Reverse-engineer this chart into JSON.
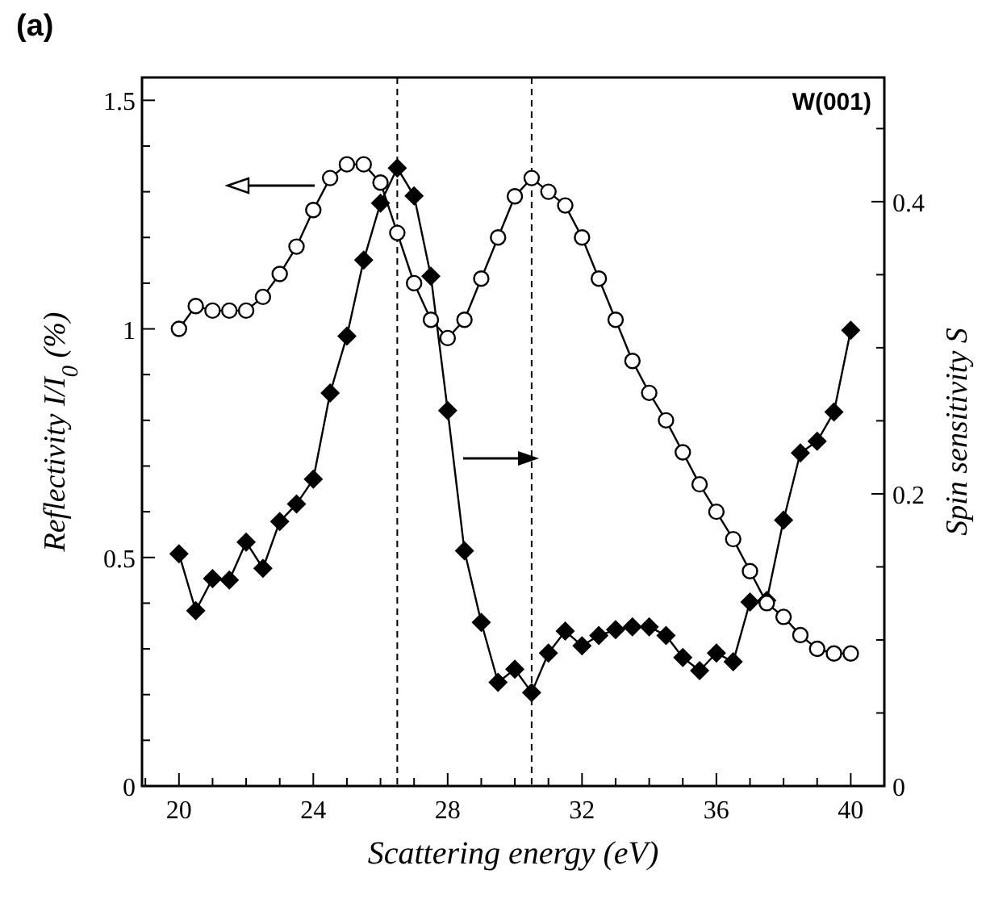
{
  "chart_data": {
    "type": "line",
    "title": "(a)",
    "xlabel": "Scattering energy (eV)",
    "ylabel": "Reflectivity I/I$_{0}$ (%)",
    "y2label": "Spin sensitivity S",
    "annotations": [
      "W(001)"
    ],
    "x": [
      20,
      20.5,
      21,
      21.5,
      22,
      22.5,
      23,
      23.5,
      24,
      24.5,
      25,
      25.5,
      26,
      26.5,
      27,
      27.5,
      28,
      28.5,
      29,
      29.5,
      30,
      30.5,
      31,
      31.5,
      32,
      32.5,
      33,
      33.5,
      34,
      34.5,
      35,
      35.5,
      36,
      36.5,
      37,
      37.5,
      38,
      38.5,
      39,
      39.5,
      40
    ],
    "series": [
      {
        "color": "#000000",
        "marker": "circle",
        "values": [
          1.0,
          1.05,
          1.04,
          1.04,
          1.04,
          1.07,
          1.12,
          1.18,
          1.26,
          1.33,
          1.36,
          1.36,
          1.32,
          1.21,
          1.1,
          1.02,
          0.98,
          1.02,
          1.11,
          1.2,
          1.29,
          1.33,
          1.3,
          1.27,
          1.2,
          1.11,
          1.02,
          0.93,
          0.86,
          0.8,
          0.73,
          0.66,
          0.6,
          0.54,
          0.47,
          0.4,
          0.37,
          0.33,
          0.3,
          0.29,
          0.29
        ]
      },
      {
        "color": "#000000",
        "marker": "diamond",
        "axis": "y2",
        "values": [
          0.159,
          0.12,
          0.142,
          0.141,
          0.167,
          0.149,
          0.181,
          0.193,
          0.21,
          0.269,
          0.308,
          0.36,
          0.399,
          0.423,
          0.404,
          0.349,
          0.257,
          0.161,
          0.112,
          0.071,
          0.08,
          0.064,
          0.091,
          0.106,
          0.096,
          0.103,
          0.107,
          0.109,
          0.109,
          0.103,
          0.088,
          0.079,
          0.091,
          0.085,
          0.126,
          0.127,
          0.182,
          0.228,
          0.236,
          0.256,
          0.312
        ]
      }
    ],
    "xlim": [
      18.9,
      41.0
    ],
    "xticks": [
      {
        "value": 19,
        "label": null
      },
      20,
      {
        "value": 21,
        "label": null
      },
      {
        "value": 22,
        "label": null
      },
      {
        "value": 23,
        "label": null
      },
      24,
      {
        "value": 25,
        "label": null
      },
      {
        "value": 26,
        "label": null
      },
      {
        "value": 27,
        "label": null
      },
      28,
      {
        "value": 29,
        "label": null
      },
      {
        "value": 30,
        "label": null
      },
      {
        "value": 31,
        "label": null
      },
      32,
      {
        "value": 33,
        "label": null
      },
      {
        "value": 34,
        "label": null
      },
      {
        "value": 35,
        "label": null
      },
      36,
      {
        "value": 37,
        "label": null
      },
      {
        "value": 38,
        "label": null
      },
      {
        "value": 39,
        "label": null
      },
      40
    ],
    "ylim": [
      0,
      1.55
    ],
    "yticks": [
      0,
      {
        "value": 0.1,
        "label": null
      },
      {
        "value": 0.2,
        "label": null
      },
      {
        "value": 0.3,
        "label": null
      },
      {
        "value": 0.4,
        "label": null
      },
      0.5,
      {
        "value": 0.6,
        "label": null
      },
      {
        "value": 0.7,
        "label": null
      },
      {
        "value": 0.8,
        "label": null
      },
      {
        "value": 0.9,
        "label": null
      },
      1,
      {
        "value": 1.1,
        "label": null
      },
      {
        "value": 1.2,
        "label": null
      },
      {
        "value": 1.3,
        "label": null
      },
      {
        "value": 1.4,
        "label": null
      },
      1.5
    ],
    "y2lim": [
      0,
      0.485
    ],
    "y2ticks": [
      0,
      {
        "value": 0.05,
        "label": null
      },
      {
        "value": 0.1,
        "label": null
      },
      {
        "value": 0.15,
        "label": null
      },
      0.2,
      {
        "value": 0.25,
        "label": null
      },
      {
        "value": 0.3,
        "label": null
      },
      {
        "value": 0.35,
        "label": null
      },
      0.4,
      {
        "value": 0.45,
        "label": null
      }
    ],
    "ref_lines": [
      {
        "axis": "x",
        "value": 26.5,
        "line_style": "dashed"
      },
      {
        "axis": "x",
        "value": 30.5,
        "line_style": "dashed"
      }
    ],
    "grid": false
  }
}
